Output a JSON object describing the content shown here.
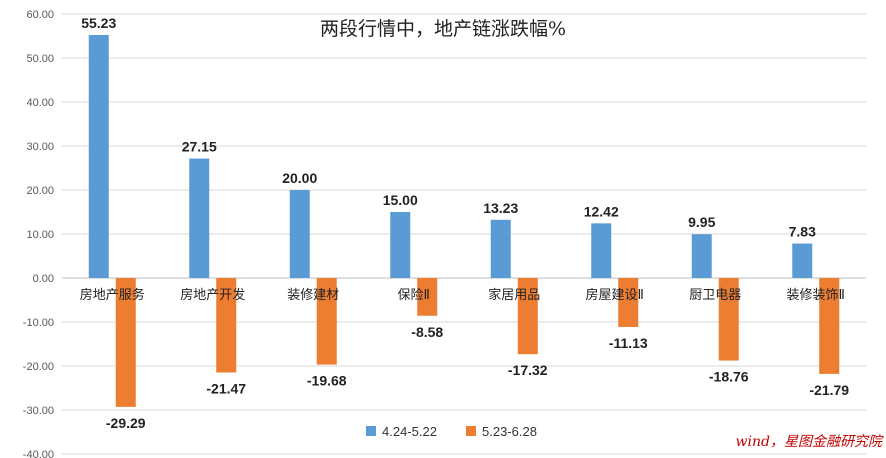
{
  "chart_data": {
    "type": "bar",
    "title": "两段行情中，地产链涨跌幅%",
    "categories": [
      "房地产服务",
      "房地产开发",
      "装修建材",
      "保险Ⅱ",
      "家居用品",
      "房屋建设Ⅱ",
      "厨卫电器",
      "装修装饰Ⅱ"
    ],
    "series": [
      {
        "name": "4.24-5.22",
        "color": "#5b9bd5",
        "values": [
          55.23,
          27.15,
          20.0,
          15.0,
          13.23,
          12.42,
          9.95,
          7.83
        ],
        "labels": [
          "55.23",
          "27.15",
          "20.00",
          "15.00",
          "13.23",
          "12.42",
          "9.95",
          "7.83"
        ]
      },
      {
        "name": "5.23-6.28",
        "color": "#ed7d31",
        "values": [
          -29.29,
          -21.47,
          -19.68,
          -8.58,
          -17.32,
          -11.13,
          -18.76,
          -21.79
        ],
        "labels": [
          "-29.29",
          "-21.47",
          "-19.68",
          "-8.58",
          "-17.32",
          "-11.13",
          "-18.76",
          "-21.79"
        ]
      }
    ],
    "ylim": [
      -40,
      60
    ],
    "yticks": [
      60,
      50,
      40,
      30,
      20,
      10,
      0,
      -10,
      -20,
      -30,
      -40
    ],
    "ytick_labels": [
      "60.00",
      "50.00",
      "40.00",
      "30.00",
      "20.00",
      "10.00",
      "0.00",
      "-10.00",
      "-20.00",
      "-30.00",
      "-40.00"
    ],
    "grid": true,
    "legend_position": "bottom"
  },
  "source_note": "wind，星图金融研究院"
}
